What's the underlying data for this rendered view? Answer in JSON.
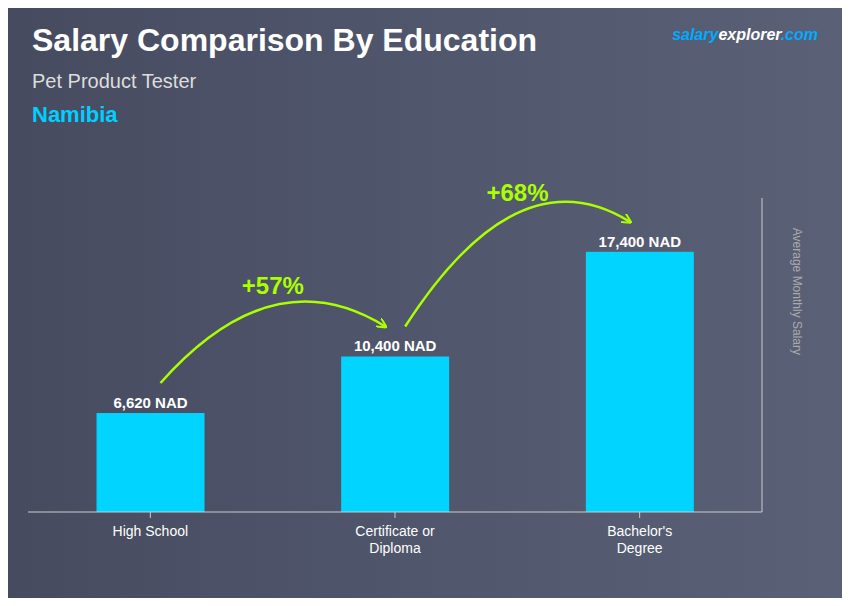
{
  "chart_data": {
    "type": "bar",
    "title": "Salary Comparison By Education",
    "subtitle": "Pet Product Tester",
    "categories": [
      "High School",
      "Certificate or\nDiploma",
      "Bachelor's\nDegree"
    ],
    "values": [
      6620,
      10400,
      17400
    ],
    "value_labels": [
      "6,620 NAD",
      "10,400 NAD",
      "17,400 NAD"
    ],
    "data_labels": true,
    "color": "#00d4ff",
    "ylabel": "Average Monthly Salary",
    "ylim": [
      0,
      21000
    ],
    "tick_labels": "x",
    "grid": false,
    "annotations": [
      {
        "text": "Namibia",
        "color": "#00cfff"
      },
      {
        "text": "+57%",
        "color": "#aaff00"
      },
      {
        "text": "+68%",
        "color": "#aaff00"
      },
      {
        "text": "salary",
        "color": "#00aaff"
      },
      {
        "text": "explorer",
        "color": "#ffffff"
      },
      {
        "text": ".com",
        "color": "#00aaff"
      }
    ]
  }
}
